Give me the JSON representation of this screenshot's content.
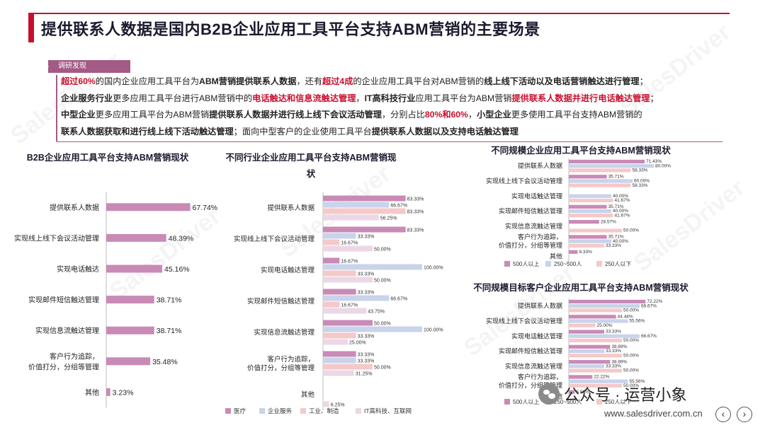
{
  "title": "提供联系人数据是国内B2B企业应用工具平台支持ABM营销的主要场景",
  "badge": "调研发现",
  "watermark_text": "SalesDriver",
  "summary": {
    "l1a": "超过60%",
    "l1b": "的国内企业应用工具平台为",
    "l1c": "ABM营销提供联系人数据",
    "l1d": "，还有",
    "l1e": "超过4成",
    "l1f": "的企业应用工具平台对ABM营销的",
    "l1g": "线上线下活动以及电话营销触达进行管理",
    "l1h": "；",
    "l2a": "企业服务行业",
    "l2b": "更多应用工具平台进行ABM营销中的",
    "l2c": "电话触达和信息流触达管理",
    "l2d": "，",
    "l2e": "IT高科技行业",
    "l2f": "应用工具平台为ABM营销",
    "l2g": "提供联系人数据并进行电话触达管理",
    "l2h": "；",
    "l3a": "中型企业",
    "l3b": "更多应用工具平台为ABM营销",
    "l3c": "提供联系人数据并进行线上线下会议活动管理",
    "l3d": "，分别占比",
    "l3e": "80%和60%",
    "l3f": "，",
    "l3g": "小型企业",
    "l3h": "更多使用工具平台支持ABM营销的",
    "l4a": "联系人数据获取和进行线上线下活动触达管理",
    "l4b": "；面向中型客户的企业使用工具平台",
    "l4c": "提供联系人数据以及支持电话触达管理"
  },
  "footer": {
    "wechat_label": "公众号 · 运营小象",
    "site": "www.salesdriver.com.cn",
    "prev": "‹",
    "next": "›"
  },
  "colors": {
    "accent": "#c8102e",
    "purple": "#c98ab6",
    "series_blue": "#c9d3ea",
    "series_light": "#f5c9c9"
  },
  "chart_data": [
    {
      "type": "bar",
      "title": "B2B企业应用工具平台支持ABM营销现状",
      "categories": [
        "提供联系人数据",
        "实现线上线下会议活动管理",
        "实现电话触达",
        "实现邮件短信触达管理",
        "实现信息流触达管理",
        "客户行为追踪，价值打分，分组等管理",
        "其他"
      ],
      "values": [
        67.74,
        48.39,
        45.16,
        38.71,
        38.71,
        35.48,
        3.23
      ],
      "labels": [
        "67.74%",
        "48.39%",
        "45.16%",
        "38.71%",
        "38.71%",
        "35.48%",
        "3.23%"
      ],
      "xlim": [
        0,
        100
      ]
    },
    {
      "type": "bar",
      "title": "不同行业企业应用工具平台支持ABM营销现状",
      "categories": [
        "提供联系人数据",
        "实现线上线下会议活动管理",
        "实现电话触达管理",
        "实现邮件短信触达管理",
        "实现信息流触达管理",
        "客户行为追踪，价值打分，分组等管理",
        "其他"
      ],
      "series": [
        {
          "name": "医疗",
          "values": [
            83.33,
            83.33,
            16.67,
            33.33,
            50.0,
            33.33,
            null
          ],
          "labels": [
            "83.33%",
            "83.33%",
            "16.67%",
            "33.33%",
            "50.00%",
            "33.33%",
            ""
          ]
        },
        {
          "name": "企业服务",
          "values": [
            66.67,
            33.33,
            100.0,
            66.67,
            100.0,
            33.33,
            null
          ],
          "labels": [
            "66.67%",
            "33.33%",
            "100.00%",
            "66.67%",
            "100.00%",
            "33.33%",
            ""
          ]
        },
        {
          "name": "工业、制造",
          "values": [
            83.33,
            16.67,
            33.33,
            16.67,
            33.33,
            50.0,
            null
          ],
          "labels": [
            "83.33%",
            "16.67%",
            "33.33%",
            "16.67%",
            "33.33%",
            "50.00%",
            ""
          ]
        },
        {
          "name": "IT高科技、互联网",
          "values": [
            56.25,
            50.0,
            50.0,
            43.75,
            25.0,
            31.25,
            6.25
          ],
          "labels": [
            "56.25%",
            "50.00%",
            "50.00%",
            "43.75%",
            "25.00%",
            "31.25%",
            "6.25%"
          ]
        }
      ],
      "xlim": [
        0,
        100
      ]
    },
    {
      "type": "bar",
      "title": "不同规模企业应用工具平台支持ABM营销现状",
      "categories": [
        "提供联系人数据",
        "实现线上线下会议活动管理",
        "实现电话触达管理",
        "实现邮件短信触达管理",
        "实现信息流触达管理",
        "客户行为追踪，价值打分，分组等管理",
        "其他"
      ],
      "series": [
        {
          "name": "500人以上",
          "values": [
            71.43,
            35.71,
            null,
            35.71,
            28.57,
            35.71,
            8.33
          ],
          "labels": [
            "71.43%",
            "35.71%",
            "",
            "35.71%",
            "28.57%",
            "35.71%",
            "8.33%"
          ]
        },
        {
          "name": "250~500人",
          "values": [
            80.0,
            60.0,
            40.0,
            40.0,
            null,
            40.0,
            null
          ],
          "labels": [
            "80.00%",
            "60.00%",
            "40.00%",
            "40.00%",
            "",
            "40.00%",
            ""
          ]
        },
        {
          "name": "250人以下",
          "values": [
            58.33,
            58.33,
            41.67,
            41.67,
            50.0,
            33.33,
            null
          ],
          "labels": [
            "58.33%",
            "58.33%",
            "41.67%",
            "41.67%",
            "50.00%",
            "33.33%",
            ""
          ]
        }
      ],
      "extra_labels": [
        "50.00%",
        "50.00%"
      ],
      "xlim": [
        0,
        100
      ]
    },
    {
      "type": "bar",
      "title": "不同规模目标客户企业应用工具平台支持ABM营销现状",
      "categories": [
        "提供联系人数据",
        "实现线上线下会议活动管理",
        "实现电话触达管理",
        "实现邮件短信触达管理",
        "实现信息流触达管理",
        "客户行为追踪，价值打分，分组等管理",
        "其他"
      ],
      "series": [
        {
          "name": "500人以上",
          "values": [
            72.22,
            44.44,
            33.33,
            38.89,
            38.89,
            22.22,
            5.56
          ],
          "labels": [
            "72.22%",
            "44.44%",
            "33.33%",
            "38.89%",
            "38.89%",
            "22.22%",
            "5.56%"
          ]
        },
        {
          "name": "250~500人",
          "values": [
            66.67,
            55.56,
            66.67,
            33.33,
            33.33,
            55.56,
            null
          ],
          "labels": [
            "66.67%",
            "55.56%",
            "66.67%",
            "33.33%",
            "33.33%",
            "55.56%",
            ""
          ]
        },
        {
          "name": "250人以下",
          "values": [
            50.0,
            25.0,
            50.0,
            50.0,
            50.0,
            50.0,
            null
          ],
          "labels": [
            "50.00%",
            "25.00%",
            "50.00%",
            "50.00%",
            "50.00%",
            "50.00%",
            ""
          ]
        }
      ],
      "xlim": [
        0,
        100
      ]
    }
  ]
}
